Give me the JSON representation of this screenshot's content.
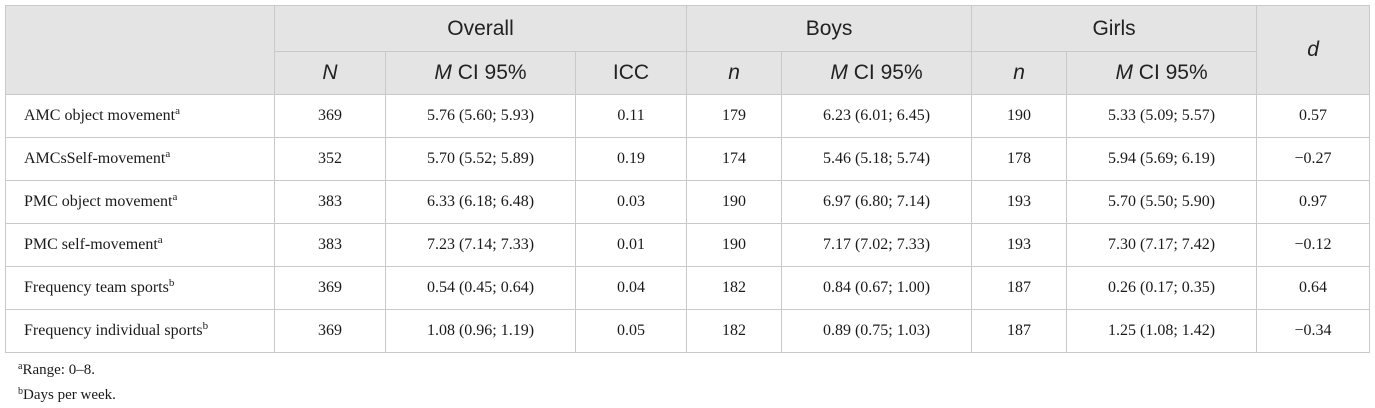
{
  "header": {
    "groups": {
      "overall": "Overall",
      "boys": "Boys",
      "girls": "Girls",
      "d": "d"
    },
    "sub": {
      "overall_n_symbol": "N",
      "overall_ci_symbol": "M",
      "overall_ci_text": " CI 95%",
      "icc": "ICC",
      "boys_n_symbol": "n",
      "boys_ci_symbol": "M",
      "boys_ci_text": " CI 95%",
      "girls_n_symbol": "n",
      "girls_ci_symbol": "M",
      "girls_ci_text": " CI 95%"
    }
  },
  "rows": [
    {
      "label": "AMC object movement",
      "sup": "a",
      "N": "369",
      "overall_ci": "5.76 (5.60; 5.93)",
      "icc": "0.11",
      "boys_n": "179",
      "boys_ci": "6.23 (6.01; 6.45)",
      "girls_n": "190",
      "girls_ci": "5.33 (5.09; 5.57)",
      "d": "0.57"
    },
    {
      "label": "AMCsSelf-movement",
      "sup": "a",
      "N": "352",
      "overall_ci": "5.70 (5.52; 5.89)",
      "icc": "0.19",
      "boys_n": "174",
      "boys_ci": "5.46 (5.18; 5.74)",
      "girls_n": "178",
      "girls_ci": "5.94 (5.69; 6.19)",
      "d": "−0.27"
    },
    {
      "label": "PMC object movement",
      "sup": "a",
      "N": "383",
      "overall_ci": "6.33 (6.18; 6.48)",
      "icc": "0.03",
      "boys_n": "190",
      "boys_ci": "6.97 (6.80; 7.14)",
      "girls_n": "193",
      "girls_ci": "5.70 (5.50; 5.90)",
      "d": "0.97"
    },
    {
      "label": "PMC self-movement",
      "sup": "a",
      "N": "383",
      "overall_ci": "7.23 (7.14; 7.33)",
      "icc": "0.01",
      "boys_n": "190",
      "boys_ci": "7.17 (7.02; 7.33)",
      "girls_n": "193",
      "girls_ci": "7.30 (7.17; 7.42)",
      "d": "−0.12"
    },
    {
      "label": "Frequency team sports",
      "sup": "b",
      "N": "369",
      "overall_ci": "0.54 (0.45; 0.64)",
      "icc": "0.04",
      "boys_n": "182",
      "boys_ci": "0.84 (0.67; 1.00)",
      "girls_n": "187",
      "girls_ci": "0.26 (0.17; 0.35)",
      "d": "0.64"
    },
    {
      "label": "Frequency individual sports",
      "sup": "b",
      "N": "369",
      "overall_ci": "1.08 (0.96; 1.19)",
      "icc": "0.05",
      "boys_n": "182",
      "boys_ci": "0.89 (0.75; 1.03)",
      "girls_n": "187",
      "girls_ci": "1.25 (1.08; 1.42)",
      "d": "−0.34"
    }
  ],
  "notes": [
    {
      "mark": "a",
      "text": "Range: 0–8."
    },
    {
      "mark": "b",
      "text": "Days per week."
    }
  ]
}
